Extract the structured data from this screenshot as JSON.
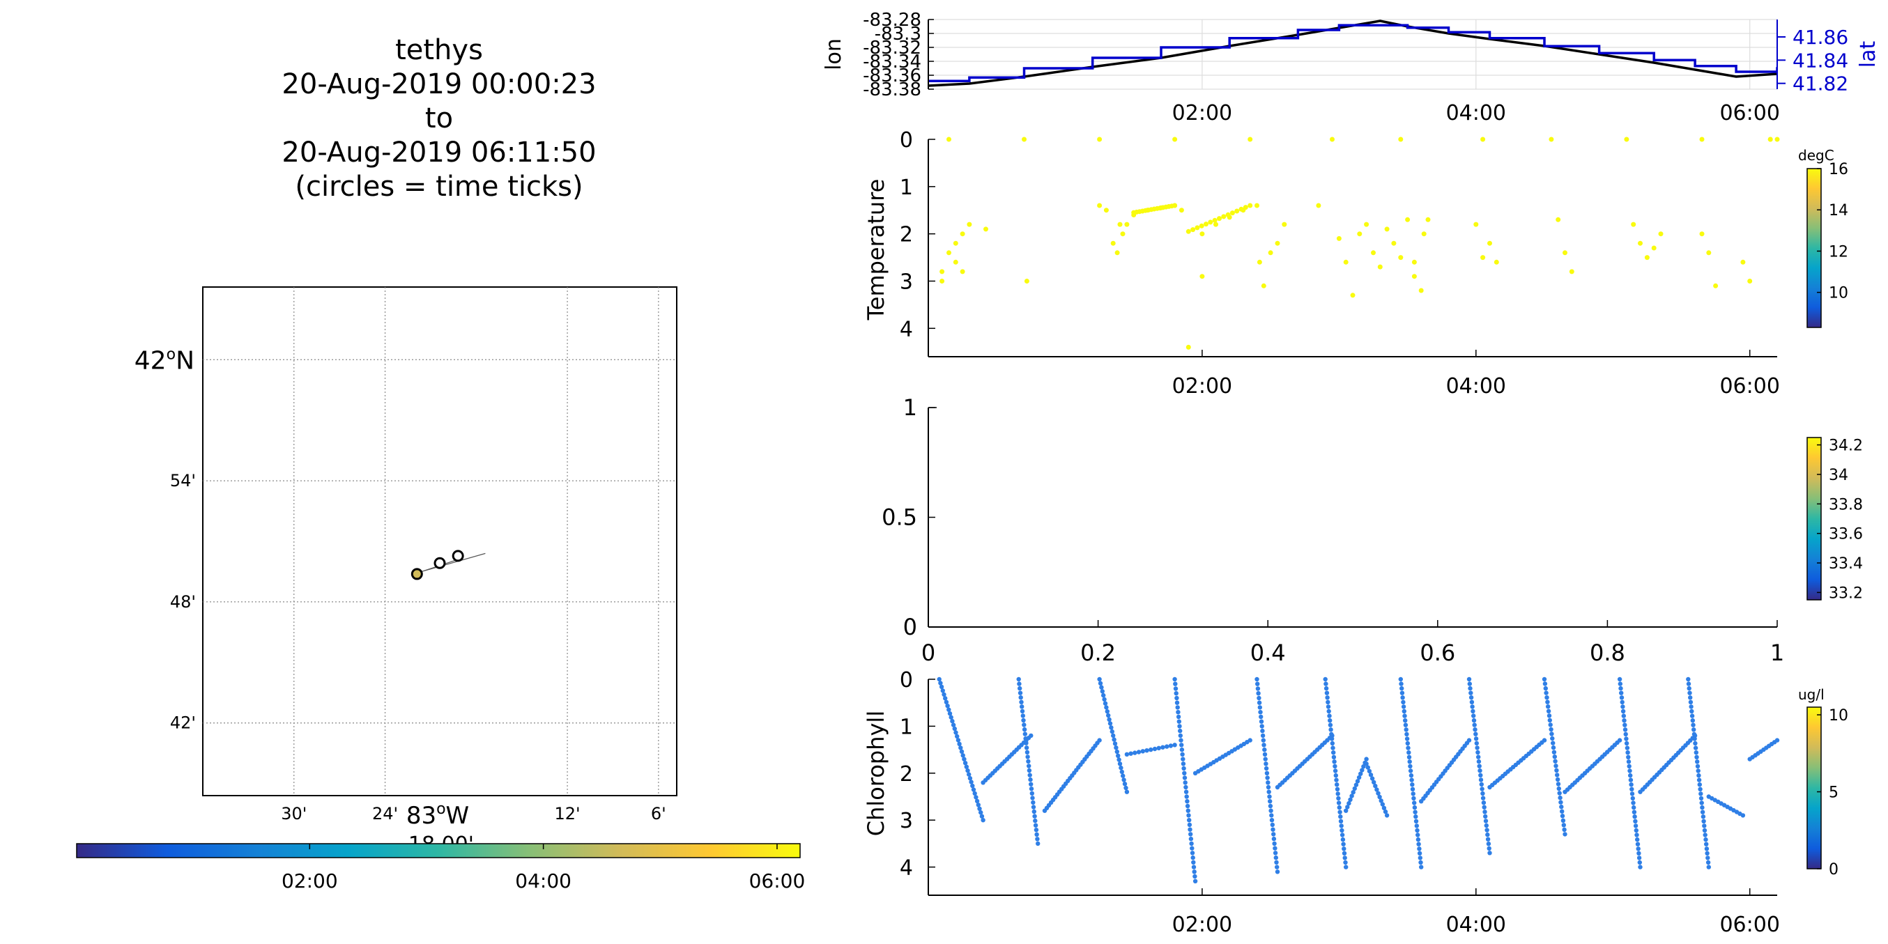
{
  "title_lines": [
    "tethys",
    "20-Aug-2019 00:00:23",
    "to",
    "20-Aug-2019 06:11:50",
    "(circles = time ticks)"
  ],
  "colors": {
    "parula": [
      "#352a87",
      "#0f5cdd",
      "#1481d6",
      "#06a4ca",
      "#2eb7a4",
      "#87bf77",
      "#d1bb59",
      "#fec832",
      "#f9fb0e"
    ],
    "lat_line": "#0000cc",
    "lon_line": "#000000",
    "temperature_points": "#f9fb0e",
    "chlorophyll_points": "#2f7fe6"
  },
  "chart_data": [
    {
      "type": "map",
      "name": "track-map",
      "lon_ticks": [
        {
          "lon": -83.5,
          "label": "30'"
        },
        {
          "lon": -83.4,
          "label": "24'"
        },
        {
          "lon": -83.2,
          "label": "12'"
        },
        {
          "lon": -83.1,
          "label": "6'"
        }
      ],
      "lon_main_label": "83",
      "lon_main_label_suffix": "W",
      "lon_partial_label": "18.00'",
      "lat_ticks": [
        {
          "lat": 42.0,
          "label": "42",
          "suffix": "N"
        },
        {
          "lat": 41.9,
          "label": "54'"
        },
        {
          "lat": 41.8,
          "label": "48'"
        },
        {
          "lat": 41.7,
          "label": "42'"
        }
      ],
      "lon_range": [
        -83.6,
        -83.08
      ],
      "lat_range": [
        41.64,
        42.06
      ],
      "grid": "dotted",
      "track": [
        [
          -83.29,
          41.84
        ],
        [
          -83.36,
          41.825
        ],
        [
          -83.32,
          41.835
        ]
      ],
      "time_tick_circles": [
        [
          -83.365,
          41.823
        ],
        [
          -83.34,
          41.832
        ],
        [
          -83.32,
          41.838
        ]
      ],
      "colorbar": {
        "orientation": "horizontal",
        "ticks": [
          "02:00",
          "04:00",
          "06:00"
        ],
        "range_hours": [
          0.006,
          6.197
        ]
      }
    },
    {
      "type": "line",
      "name": "lon-lat",
      "ylabel_left": "lon",
      "ylabel_right": "lat",
      "y_left_ticks": [
        "-83.28",
        "-83.3",
        "-83.32",
        "-83.34",
        "-83.36",
        "-83.38"
      ],
      "y_left_range": [
        -83.38,
        -83.28
      ],
      "y_right_ticks": [
        "41.86",
        "41.84",
        "41.82"
      ],
      "y_right_range": [
        41.815,
        41.875
      ],
      "x_ticks": [
        "02:00",
        "04:00",
        "06:00"
      ],
      "x_range_hours": [
        0.0,
        6.2
      ],
      "grid": true,
      "series": [
        {
          "axis": "left",
          "x_hours": [
            0.0,
            0.3,
            0.7,
            1.2,
            1.7,
            2.2,
            2.7,
            3.0,
            3.3,
            3.5,
            3.8,
            4.1,
            4.5,
            4.9,
            5.3,
            5.6,
            5.9,
            6.2
          ],
          "values": [
            -83.375,
            -83.372,
            -83.362,
            -83.348,
            -83.335,
            -83.318,
            -83.302,
            -83.292,
            -83.282,
            -83.29,
            -83.3,
            -83.308,
            -83.318,
            -83.33,
            -83.342,
            -83.352,
            -83.362,
            -83.358
          ]
        },
        {
          "axis": "right",
          "x_hours": [
            0.0,
            0.3,
            0.7,
            1.2,
            1.7,
            2.2,
            2.7,
            3.0,
            3.3,
            3.5,
            3.8,
            4.1,
            4.5,
            4.9,
            5.3,
            5.6,
            5.9,
            6.2
          ],
          "values": [
            41.822,
            41.825,
            41.833,
            41.842,
            41.851,
            41.859,
            41.866,
            41.87,
            41.87,
            41.868,
            41.864,
            41.859,
            41.852,
            41.846,
            41.84,
            41.835,
            41.83,
            41.834
          ]
        }
      ]
    },
    {
      "type": "scatter",
      "name": "temperature",
      "ylabel": "Temperature",
      "y_ticks": [
        "0",
        "1",
        "2",
        "3",
        "4"
      ],
      "y_range": [
        0,
        4.6
      ],
      "x_ticks": [
        "02:00",
        "04:00",
        "06:00"
      ],
      "x_range_hours": [
        0.0,
        6.2
      ],
      "colorbar": {
        "unit": "degC",
        "ticks": [
          "16",
          "14",
          "12",
          "10"
        ],
        "range": [
          8.3,
          16
        ]
      },
      "points_x_hours": [
        0.1,
        0.15,
        0.2,
        0.25,
        0.3,
        0.1,
        0.2,
        0.25,
        0.42,
        0.72,
        1.25,
        1.3,
        1.4,
        1.5,
        1.6,
        1.7,
        1.8,
        1.35,
        1.38,
        1.42,
        1.45,
        2.0,
        2.1,
        2.2,
        2.3,
        2.4,
        2.0,
        1.85,
        1.9,
        2.42,
        2.45,
        2.5,
        2.55,
        2.6,
        2.85,
        3.0,
        3.05,
        3.1,
        3.15,
        3.2,
        3.25,
        3.3,
        3.35,
        3.4,
        3.45,
        3.5,
        3.55,
        3.6,
        3.62,
        3.65,
        3.55,
        4.0,
        4.05,
        4.1,
        4.15,
        4.6,
        4.65,
        4.7,
        5.15,
        5.2,
        5.25,
        5.3,
        5.35,
        5.65,
        5.7,
        5.75,
        5.95,
        6.0,
        6.2,
        6.15,
        0.15,
        0.7,
        1.25,
        1.8,
        2.35,
        2.95,
        3.45,
        4.05,
        4.55,
        5.1,
        5.65,
        6.15
      ],
      "points_y": [
        2.8,
        2.4,
        2.2,
        2.0,
        1.8,
        3.0,
        2.6,
        2.8,
        1.9,
        3.0,
        1.4,
        1.5,
        1.8,
        1.6,
        1.5,
        1.45,
        1.4,
        2.2,
        2.4,
        2.0,
        1.8,
        2.0,
        1.8,
        1.65,
        1.5,
        1.4,
        2.9,
        1.5,
        4.4,
        2.6,
        3.1,
        2.4,
        2.2,
        1.8,
        1.4,
        2.1,
        2.6,
        3.3,
        2.0,
        1.8,
        2.4,
        2.7,
        1.9,
        2.2,
        2.5,
        1.7,
        2.9,
        3.2,
        2.0,
        1.7,
        2.6,
        1.8,
        2.5,
        2.2,
        2.6,
        1.7,
        2.4,
        2.8,
        1.8,
        2.2,
        2.5,
        2.3,
        2.0,
        2.0,
        2.4,
        3.1,
        2.6,
        3.0,
        0.0,
        0.0,
        0.0,
        0.0,
        0.0,
        0.0,
        0.0,
        0.0,
        0.0,
        0.0,
        0.0,
        0.0,
        0.0,
        0.0
      ]
    },
    {
      "type": "scatter",
      "name": "salinity-empty",
      "y_ticks": [
        "1",
        "0.5",
        "0"
      ],
      "x_ticks": [
        "0",
        "0.2",
        "0.4",
        "0.6",
        "0.8",
        "1"
      ],
      "x_range": [
        0,
        1
      ],
      "y_range": [
        0,
        1
      ],
      "colorbar": {
        "ticks": [
          "34.2",
          "34",
          "33.8",
          "33.6",
          "33.4",
          "33.2"
        ],
        "range": [
          33.15,
          34.25
        ]
      },
      "points": []
    },
    {
      "type": "scatter",
      "name": "chlorophyll",
      "ylabel": "Chlorophyll",
      "y_ticks": [
        "0",
        "1",
        "2",
        "3",
        "4"
      ],
      "y_range": [
        0,
        4.6
      ],
      "x_ticks": [
        "02:00",
        "04:00",
        "06:00"
      ],
      "x_range_hours": [
        0.0,
        6.2
      ],
      "colorbar": {
        "unit": "ug/l",
        "ticks": [
          "10",
          "5",
          "0"
        ],
        "range": [
          0,
          10.5
        ]
      },
      "profiles": [
        {
          "t0": 0.08,
          "t1": 0.4,
          "z_start": 0.0,
          "z_end": 3.0
        },
        {
          "t0": 0.4,
          "t1": 0.75,
          "z_start": 2.2,
          "z_end": 1.2
        },
        {
          "t0": 0.66,
          "t1": 0.8,
          "z_start": 0.0,
          "z_end": 3.5
        },
        {
          "t0": 0.85,
          "t1": 1.25,
          "z_start": 2.8,
          "z_end": 1.3
        },
        {
          "t0": 1.25,
          "t1": 1.45,
          "z_start": 0.0,
          "z_end": 2.4
        },
        {
          "t0": 1.45,
          "t1": 1.8,
          "z_start": 1.6,
          "z_end": 1.4
        },
        {
          "t0": 1.8,
          "t1": 1.95,
          "z_start": 0.0,
          "z_end": 4.3
        },
        {
          "t0": 1.95,
          "t1": 2.35,
          "z_start": 2.0,
          "z_end": 1.3
        },
        {
          "t0": 2.4,
          "t1": 2.55,
          "z_start": 0.0,
          "z_end": 4.1
        },
        {
          "t0": 2.55,
          "t1": 2.95,
          "z_start": 2.3,
          "z_end": 1.2
        },
        {
          "t0": 2.9,
          "t1": 3.05,
          "z_start": 0.0,
          "z_end": 4.0
        },
        {
          "t0": 3.05,
          "t1": 3.2,
          "z_start": 2.8,
          "z_end": 1.7
        },
        {
          "t0": 3.2,
          "t1": 3.35,
          "z_start": 1.8,
          "z_end": 2.9
        },
        {
          "t0": 3.45,
          "t1": 3.6,
          "z_start": 0.0,
          "z_end": 4.0
        },
        {
          "t0": 3.6,
          "t1": 3.95,
          "z_start": 2.6,
          "z_end": 1.3
        },
        {
          "t0": 3.95,
          "t1": 4.1,
          "z_start": 0.0,
          "z_end": 3.7
        },
        {
          "t0": 4.1,
          "t1": 4.5,
          "z_start": 2.3,
          "z_end": 1.3
        },
        {
          "t0": 4.5,
          "t1": 4.65,
          "z_start": 0.0,
          "z_end": 3.3
        },
        {
          "t0": 4.65,
          "t1": 5.05,
          "z_start": 2.4,
          "z_end": 1.3
        },
        {
          "t0": 5.05,
          "t1": 5.2,
          "z_start": 0.0,
          "z_end": 4.0
        },
        {
          "t0": 5.2,
          "t1": 5.6,
          "z_start": 2.4,
          "z_end": 1.2
        },
        {
          "t0": 5.55,
          "t1": 5.7,
          "z_start": 0.0,
          "z_end": 4.0
        },
        {
          "t0": 5.7,
          "t1": 5.95,
          "z_start": 2.5,
          "z_end": 2.9
        },
        {
          "t0": 6.0,
          "t1": 6.2,
          "z_start": 1.7,
          "z_end": 1.3
        }
      ]
    }
  ]
}
